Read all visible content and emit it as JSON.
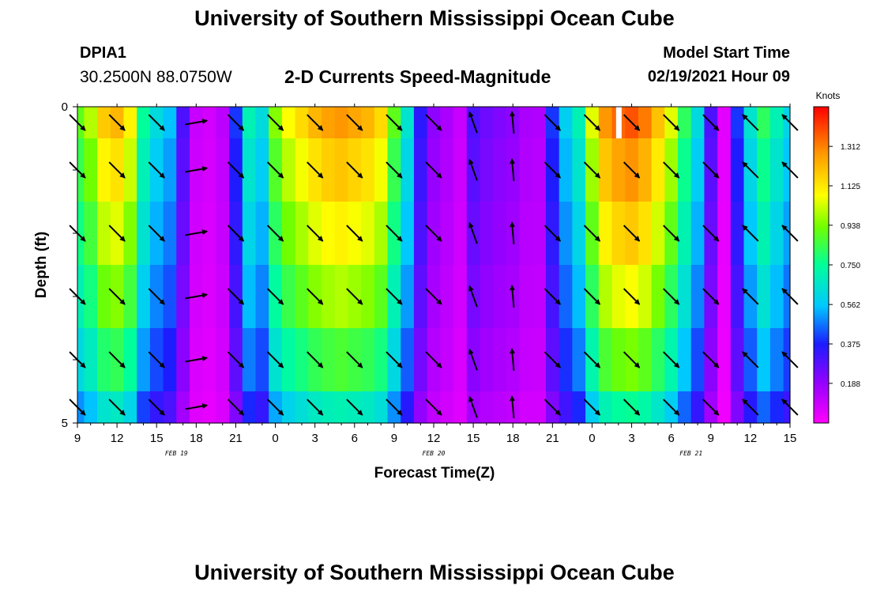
{
  "header": {
    "title": "University of Southern Mississippi Ocean Cube",
    "station_id": "DPIA1",
    "station_coords": "30.2500N 88.0750W",
    "chart_title": "2-D Currents Speed-Magnitude",
    "model_start_label": "Model Start Time",
    "model_start_value": "02/19/2021 Hour 09"
  },
  "footer": {
    "title": "University of Southern Mississippi Ocean Cube"
  },
  "chart_data": {
    "type": "heatmap",
    "title": "2-D Currents Speed-Magnitude",
    "xlabel": "Forecast Time(Z)",
    "ylabel": "Depth (ft)",
    "xlim": [
      0,
      54
    ],
    "ylim": [
      0,
      5
    ],
    "x_ticks": [
      {
        "value": 0,
        "label": "9"
      },
      {
        "value": 3,
        "label": "12"
      },
      {
        "value": 6,
        "label": "15"
      },
      {
        "value": 9,
        "label": "18"
      },
      {
        "value": 12,
        "label": "21"
      },
      {
        "value": 15,
        "label": "0"
      },
      {
        "value": 18,
        "label": "3"
      },
      {
        "value": 21,
        "label": "6"
      },
      {
        "value": 24,
        "label": "9"
      },
      {
        "value": 27,
        "label": "12"
      },
      {
        "value": 30,
        "label": "15"
      },
      {
        "value": 33,
        "label": "18"
      },
      {
        "value": 36,
        "label": "21"
      },
      {
        "value": 39,
        "label": "0"
      },
      {
        "value": 42,
        "label": "3"
      },
      {
        "value": 45,
        "label": "6"
      },
      {
        "value": 48,
        "label": "9"
      },
      {
        "value": 51,
        "label": "12"
      },
      {
        "value": 54,
        "label": "15"
      }
    ],
    "y_ticks": [
      {
        "value": 0,
        "label": "0"
      },
      {
        "value": 5,
        "label": "5"
      }
    ],
    "date_labels": [
      {
        "x": 7.5,
        "label": "FEB 19"
      },
      {
        "x": 27,
        "label": "FEB 20"
      },
      {
        "x": 46.5,
        "label": "FEB 21"
      }
    ],
    "colorbar": {
      "label": "Knots",
      "ticks": [
        0.188,
        0.375,
        0.562,
        0.75,
        0.938,
        1.125,
        1.312
      ],
      "tick_labels": [
        "0.188",
        "0.375",
        "0.562",
        "0.750",
        "0.938",
        "1.125",
        "1.312"
      ],
      "min": 0.0,
      "max": 1.5
    },
    "time_hours": [
      0,
      1,
      2,
      3,
      4,
      5,
      6,
      7,
      8,
      9,
      10,
      11,
      12,
      13,
      14,
      15,
      16,
      17,
      18,
      19,
      20,
      21,
      22,
      23,
      24,
      25,
      26,
      27,
      28,
      29,
      30,
      31,
      32,
      33,
      34,
      35,
      36,
      37,
      38,
      39,
      40,
      41,
      42,
      43,
      44,
      45,
      46,
      47,
      48,
      49,
      50,
      51,
      52,
      53,
      54
    ],
    "depth_bins": [
      {
        "top": 0,
        "bottom": 0.5
      },
      {
        "top": 0.5,
        "bottom": 1.5
      },
      {
        "top": 1.5,
        "bottom": 2.5
      },
      {
        "top": 2.5,
        "bottom": 3.5
      },
      {
        "top": 3.5,
        "bottom": 4.5
      },
      {
        "top": 4.5,
        "bottom": 5.0
      }
    ],
    "speed_profile_surface": [
      0.9,
      1.0,
      1.18,
      1.22,
      1.1,
      0.75,
      0.62,
      0.55,
      0.3,
      0.1,
      0.08,
      0.12,
      0.4,
      0.7,
      0.62,
      0.95,
      1.08,
      1.15,
      1.22,
      1.26,
      1.28,
      1.25,
      1.22,
      1.15,
      0.9,
      0.65,
      0.35,
      0.2,
      0.15,
      0.1,
      0.3,
      0.25,
      0.22,
      0.2,
      0.15,
      0.14,
      0.4,
      0.58,
      0.7,
      1.05,
      1.28,
      1.35,
      1.38,
      1.32,
      1.2,
      1.05,
      0.82,
      0.62,
      0.3,
      0.05,
      0.4,
      0.65,
      0.82,
      0.7,
      0.6
    ],
    "depth_factors": [
      1.0,
      0.93,
      0.86,
      0.78,
      0.68,
      0.55
    ],
    "arrows": {
      "columns": [
        0,
        3,
        6,
        9,
        12,
        15,
        18,
        21,
        24,
        27,
        30,
        33,
        36,
        39,
        42,
        45,
        48,
        51,
        54
      ],
      "depths": [
        0.25,
        1.0,
        2.0,
        3.0,
        4.0,
        4.75
      ],
      "directions_deg": [
        135,
        135,
        135,
        80,
        135,
        135,
        135,
        135,
        135,
        135,
        340,
        355,
        135,
        135,
        135,
        135,
        135,
        315,
        315
      ]
    },
    "missing_marks": [
      {
        "x": 41,
        "depth_top": 0,
        "depth_bottom": 0.5
      }
    ]
  }
}
